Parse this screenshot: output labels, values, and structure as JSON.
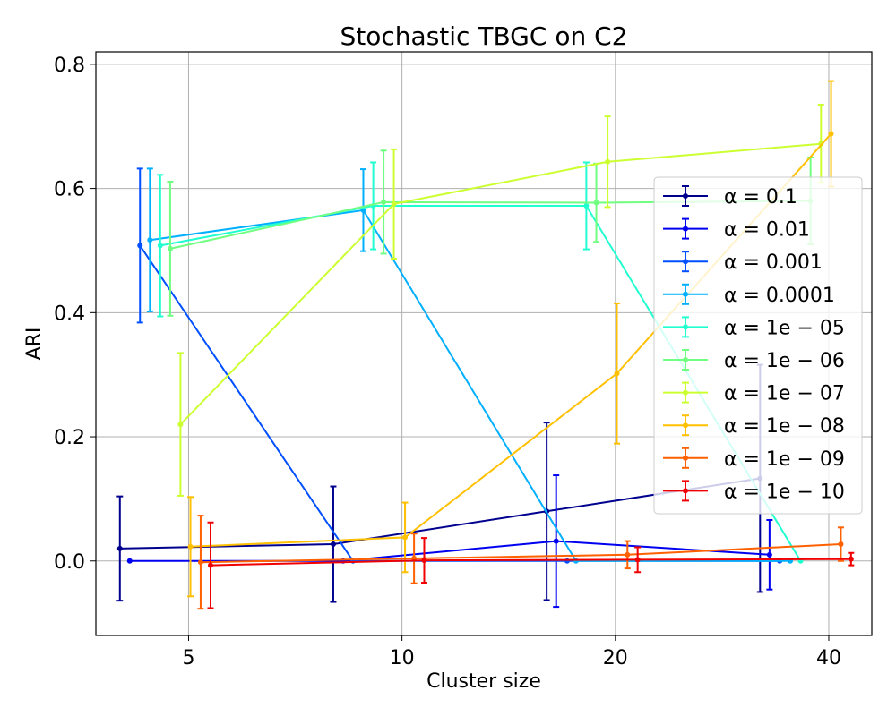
{
  "chart_data": {
    "type": "line",
    "title": "Stochastic TBGC on C2",
    "xlabel": "Cluster size",
    "ylabel": "ARI",
    "x_scale": "log",
    "x_ticks": [
      5,
      10,
      20,
      40
    ],
    "x_tick_labels": [
      "5",
      "10",
      "20",
      "40"
    ],
    "y_ticks": [
      0.0,
      0.2,
      0.4,
      0.6,
      0.8
    ],
    "y_tick_labels": [
      "0.0",
      "0.2",
      "0.4",
      "0.6",
      "0.8"
    ],
    "xlim": [
      3.7,
      46
    ],
    "ylim": [
      -0.12,
      0.82
    ],
    "grid": true,
    "legend_position": "center-right",
    "series": [
      {
        "name": "α = 0.1",
        "legend_label": "α = 0.1",
        "color": "#00008f",
        "x": [
          4.0,
          8.0,
          16.0,
          32.0
        ],
        "y": [
          0.02,
          0.027,
          0.08,
          0.133
        ],
        "err": [
          0.084,
          0.093,
          0.143,
          0.183
        ]
      },
      {
        "name": "α = 0.01",
        "legend_label": "α = 0.01",
        "color": "#0000f0",
        "x": [
          4.13,
          8.26,
          16.5,
          33.0
        ],
        "y": [
          0.0,
          0.0,
          0.032,
          0.01
        ],
        "err": [
          0.0,
          0.0,
          0.106,
          0.056
        ]
      },
      {
        "name": "α = 0.001",
        "legend_label": "α = 0.001",
        "color": "#0050ff",
        "x": [
          4.27,
          8.53,
          17.1,
          34.1
        ],
        "y": [
          0.508,
          0.0,
          0.0,
          0.0
        ],
        "err": [
          0.124,
          0.0,
          0.0,
          0.0
        ]
      },
      {
        "name": "α = 0.0001",
        "legend_label": "α = 0.0001",
        "color": "#00b0ff",
        "x": [
          4.41,
          8.82,
          17.6,
          35.3
        ],
        "y": [
          0.517,
          0.565,
          0.0,
          0.0
        ],
        "err": [
          0.115,
          0.066,
          0.0,
          0.0
        ]
      },
      {
        "name": "α = 1e−05",
        "legend_label": "α = 1e − 05",
        "color": "#20ffd0",
        "x": [
          4.56,
          9.11,
          18.2,
          36.5
        ],
        "y": [
          0.508,
          0.572,
          0.572,
          0.0
        ],
        "err": [
          0.114,
          0.07,
          0.07,
          0.0
        ]
      },
      {
        "name": "α = 1e−06",
        "legend_label": "α = 1e − 06",
        "color": "#70ff80",
        "x": [
          4.71,
          9.42,
          18.8,
          37.7
        ],
        "y": [
          0.503,
          0.578,
          0.577,
          0.58
        ],
        "err": [
          0.108,
          0.083,
          0.063,
          0.07
        ]
      },
      {
        "name": "α = 1e−07",
        "legend_label": "α = 1e − 07",
        "color": "#ccff30",
        "x": [
          4.87,
          9.74,
          19.5,
          39.0
        ],
        "y": [
          0.22,
          0.575,
          0.643,
          0.672
        ],
        "err": [
          0.115,
          0.088,
          0.073,
          0.063
        ]
      },
      {
        "name": "α = 1e−08",
        "legend_label": "α = 1e − 08",
        "color": "#ffc000",
        "x": [
          5.03,
          10.1,
          20.1,
          40.3
        ],
        "y": [
          0.023,
          0.038,
          0.302,
          0.688
        ],
        "err": [
          0.08,
          0.056,
          0.113,
          0.085
        ]
      },
      {
        "name": "α = 1e−09",
        "legend_label": "α = 1e − 09",
        "color": "#ff6000",
        "x": [
          5.2,
          10.4,
          20.8,
          41.6
        ],
        "y": [
          -0.002,
          0.004,
          0.01,
          0.027
        ],
        "err": [
          0.075,
          0.04,
          0.022,
          0.027
        ]
      },
      {
        "name": "α = 1e−10",
        "legend_label": "α = 1e − 10",
        "color": "#f00000",
        "x": [
          5.37,
          10.75,
          21.5,
          43.0
        ],
        "y": [
          -0.007,
          0.001,
          0.002,
          0.003
        ],
        "err": [
          0.069,
          0.036,
          0.02,
          0.01
        ]
      }
    ]
  }
}
